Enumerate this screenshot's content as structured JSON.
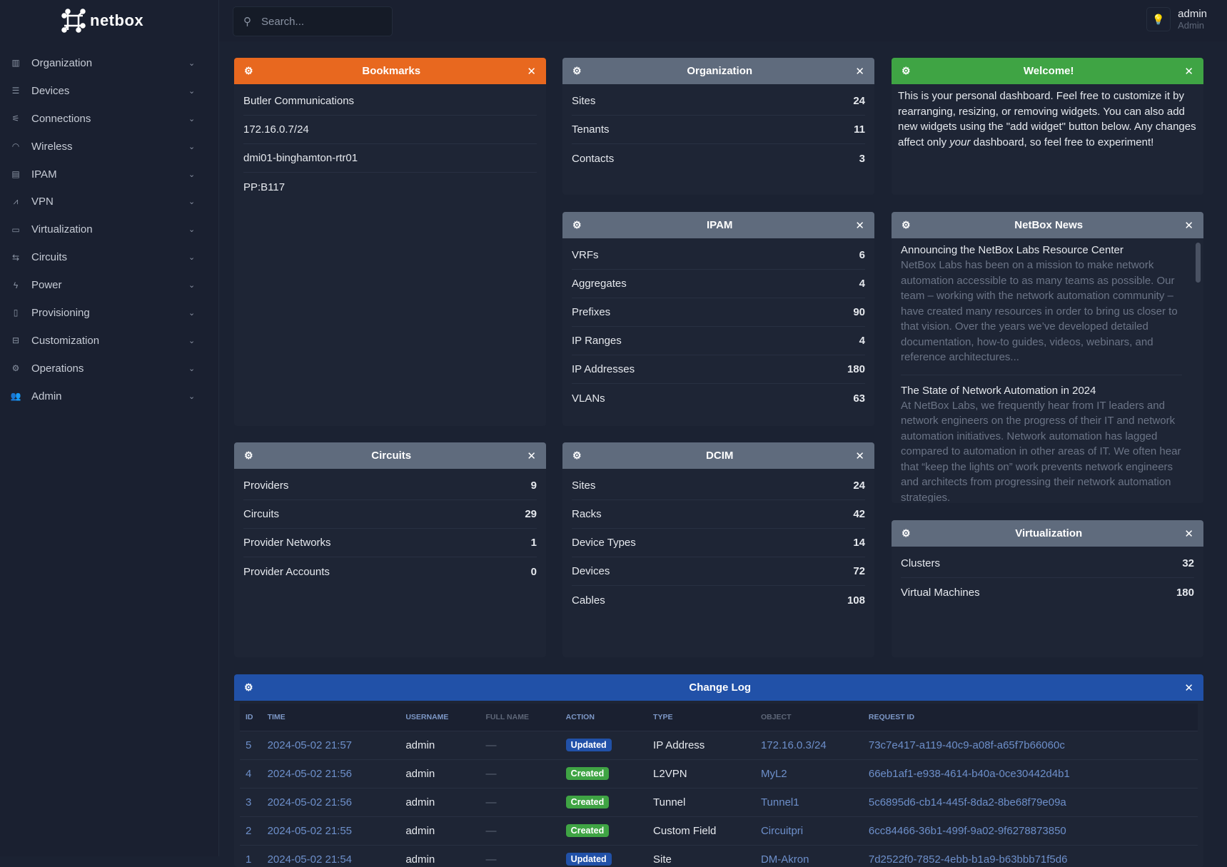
{
  "brand": {
    "name": "netbox"
  },
  "search": {
    "placeholder": "Search..."
  },
  "user": {
    "name": "admin",
    "role": "Admin"
  },
  "sidebar": {
    "items": [
      {
        "label": "Organization",
        "icon": "building-icon"
      },
      {
        "label": "Devices",
        "icon": "server-icon"
      },
      {
        "label": "Connections",
        "icon": "plug-icon"
      },
      {
        "label": "Wireless",
        "icon": "wifi-icon"
      },
      {
        "label": "IPAM",
        "icon": "counter-icon"
      },
      {
        "label": "VPN",
        "icon": "tunnel-icon"
      },
      {
        "label": "Virtualization",
        "icon": "monitor-icon"
      },
      {
        "label": "Circuits",
        "icon": "circuit-icon"
      },
      {
        "label": "Power",
        "icon": "flash-icon"
      },
      {
        "label": "Provisioning",
        "icon": "file-icon"
      },
      {
        "label": "Customization",
        "icon": "toolbox-icon"
      },
      {
        "label": "Operations",
        "icon": "cogs-icon"
      },
      {
        "label": "Admin",
        "icon": "users-icon"
      }
    ]
  },
  "colors": {
    "bookmarks": "#e8681f",
    "default": "#5f6b7d",
    "welcome": "#3fa444",
    "changelog": "#2151a8",
    "created": "#3fa444",
    "updated": "#2151a8"
  },
  "bookmarks": {
    "title": "Bookmarks",
    "items": [
      "Butler Communications",
      "172.16.0.7/24",
      "dmi01-binghamton-rtr01",
      "PP:B117"
    ]
  },
  "organization": {
    "title": "Organization",
    "rows": [
      {
        "label": "Sites",
        "value": "24"
      },
      {
        "label": "Tenants",
        "value": "11"
      },
      {
        "label": "Contacts",
        "value": "3"
      }
    ]
  },
  "welcome": {
    "title": "Welcome!",
    "text1": "This is your personal dashboard. Feel free to customize it by rearranging, resizing, or removing widgets. You can also add new widgets using the \"add widget\" button below. Any changes affect only ",
    "em": "your",
    "text2": " dashboard, so feel free to experiment!"
  },
  "ipam": {
    "title": "IPAM",
    "rows": [
      {
        "label": "VRFs",
        "value": "6"
      },
      {
        "label": "Aggregates",
        "value": "4"
      },
      {
        "label": "Prefixes",
        "value": "90"
      },
      {
        "label": "IP Ranges",
        "value": "4"
      },
      {
        "label": "IP Addresses",
        "value": "180"
      },
      {
        "label": "VLANs",
        "value": "63"
      }
    ]
  },
  "news": {
    "title": "NetBox News",
    "items": [
      {
        "title": "Announcing the NetBox Labs Resource Center",
        "body": "NetBox Labs has been on a mission to make network automation accessible to as many teams as possible. Our team – working with the network automation community – have created many resources in order to bring us closer to that vision. Over the years we’ve developed detailed documentation, how-to guides, videos, webinars, and reference architectures..."
      },
      {
        "title": "The State of Network Automation in 2024",
        "body": "At NetBox Labs, we frequently hear from IT leaders and network engineers on the progress of their IT and network automation initiatives. Network automation has lagged compared to automation in other areas of IT. We often hear that “keep the lights on” work prevents network engineers and architects from progressing their network automation strategies."
      }
    ]
  },
  "circuits": {
    "title": "Circuits",
    "rows": [
      {
        "label": "Providers",
        "value": "9"
      },
      {
        "label": "Circuits",
        "value": "29"
      },
      {
        "label": "Provider Networks",
        "value": "1"
      },
      {
        "label": "Provider Accounts",
        "value": "0"
      }
    ]
  },
  "dcim": {
    "title": "DCIM",
    "rows": [
      {
        "label": "Sites",
        "value": "24"
      },
      {
        "label": "Racks",
        "value": "42"
      },
      {
        "label": "Device Types",
        "value": "14"
      },
      {
        "label": "Devices",
        "value": "72"
      },
      {
        "label": "Cables",
        "value": "108"
      }
    ]
  },
  "virtualization": {
    "title": "Virtualization",
    "rows": [
      {
        "label": "Clusters",
        "value": "32"
      },
      {
        "label": "Virtual Machines",
        "value": "180"
      }
    ]
  },
  "changelog": {
    "title": "Change Log",
    "columns": [
      "ID",
      "Time",
      "Username",
      "Full Name",
      "Action",
      "Type",
      "Object",
      "Request ID"
    ],
    "rows": [
      {
        "id": "5",
        "time": "2024-05-02 21:57",
        "username": "admin",
        "fullname": "—",
        "action": "Updated",
        "type": "IP Address",
        "object": "172.16.0.3/24",
        "request": "73c7e417-a119-40c9-a08f-a65f7b66060c"
      },
      {
        "id": "4",
        "time": "2024-05-02 21:56",
        "username": "admin",
        "fullname": "—",
        "action": "Created",
        "type": "L2VPN",
        "object": "MyL2",
        "request": "66eb1af1-e938-4614-b40a-0ce30442d4b1"
      },
      {
        "id": "3",
        "time": "2024-05-02 21:56",
        "username": "admin",
        "fullname": "—",
        "action": "Created",
        "type": "Tunnel",
        "object": "Tunnel1",
        "request": "5c6895d6-cb14-445f-8da2-8be68f79e09a"
      },
      {
        "id": "2",
        "time": "2024-05-02 21:55",
        "username": "admin",
        "fullname": "—",
        "action": "Created",
        "type": "Custom Field",
        "object": "Circuitpri",
        "request": "6cc84466-36b1-499f-9a02-9f6278873850"
      },
      {
        "id": "1",
        "time": "2024-05-02 21:54",
        "username": "admin",
        "fullname": "—",
        "action": "Updated",
        "type": "Site",
        "object": "DM-Akron",
        "request": "7d2522f0-7852-4ebb-b1a9-b63bbb71f5d6"
      }
    ]
  }
}
